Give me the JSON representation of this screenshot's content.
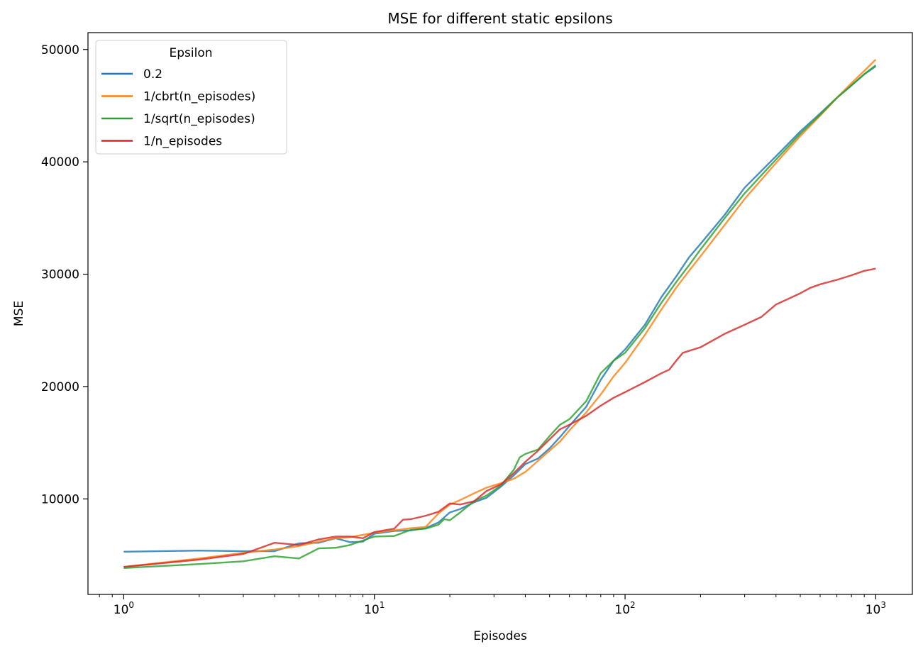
{
  "chart_data": {
    "type": "line",
    "title": "MSE for different static epsilons",
    "xlabel": "Episodes",
    "ylabel": "MSE",
    "xscale": "log",
    "xlim": [
      0.72,
      1400
    ],
    "ylim": [
      1500,
      51500
    ],
    "xticks": [
      {
        "value": 1,
        "base": "10",
        "exp": "0"
      },
      {
        "value": 10,
        "base": "10",
        "exp": "1"
      },
      {
        "value": 100,
        "base": "10",
        "exp": "2"
      },
      {
        "value": 1000,
        "base": "10",
        "exp": "3"
      }
    ],
    "yticks": [
      {
        "value": 10000,
        "label": "10000"
      },
      {
        "value": 20000,
        "label": "20000"
      },
      {
        "value": 30000,
        "label": "30000"
      },
      {
        "value": 40000,
        "label": "40000"
      },
      {
        "value": 50000,
        "label": "50000"
      }
    ],
    "grid": false,
    "legend": {
      "title": "Epsilon",
      "placement": "upper left"
    },
    "series": [
      {
        "name": "0.2",
        "color": "#1f77b4",
        "points": [
          [
            1,
            5300
          ],
          [
            2,
            5400
          ],
          [
            3,
            5350
          ],
          [
            4,
            5350
          ],
          [
            5,
            6050
          ],
          [
            6,
            6100
          ],
          [
            7,
            6500
          ],
          [
            8,
            6150
          ],
          [
            9,
            6200
          ],
          [
            10,
            6900
          ],
          [
            12,
            7150
          ],
          [
            14,
            7200
          ],
          [
            16,
            7400
          ],
          [
            18,
            7900
          ],
          [
            20,
            8800
          ],
          [
            22,
            9100
          ],
          [
            25,
            9700
          ],
          [
            28,
            10100
          ],
          [
            32,
            11100
          ],
          [
            36,
            12100
          ],
          [
            40,
            13100
          ],
          [
            45,
            13600
          ],
          [
            50,
            14500
          ],
          [
            55,
            15500
          ],
          [
            60,
            16500
          ],
          [
            70,
            18200
          ],
          [
            80,
            20600
          ],
          [
            90,
            22300
          ],
          [
            100,
            23300
          ],
          [
            120,
            25500
          ],
          [
            140,
            28000
          ],
          [
            160,
            29800
          ],
          [
            180,
            31500
          ],
          [
            200,
            32700
          ],
          [
            250,
            35300
          ],
          [
            300,
            37700
          ],
          [
            400,
            40500
          ],
          [
            500,
            42700
          ],
          [
            600,
            44300
          ],
          [
            700,
            45700
          ],
          [
            800,
            46800
          ],
          [
            900,
            47800
          ],
          [
            1000,
            48500
          ]
        ]
      },
      {
        "name": "1/cbrt(n_episodes)",
        "color": "#ff7f0e",
        "points": [
          [
            1,
            3950
          ],
          [
            2,
            4700
          ],
          [
            3,
            5200
          ],
          [
            4,
            5500
          ],
          [
            5,
            5800
          ],
          [
            6,
            6200
          ],
          [
            7,
            6500
          ],
          [
            8,
            6600
          ],
          [
            9,
            6800
          ],
          [
            10,
            7000
          ],
          [
            12,
            7200
          ],
          [
            14,
            7400
          ],
          [
            16,
            7500
          ],
          [
            18,
            8700
          ],
          [
            20,
            9500
          ],
          [
            22,
            9900
          ],
          [
            25,
            10500
          ],
          [
            28,
            11000
          ],
          [
            32,
            11400
          ],
          [
            36,
            11800
          ],
          [
            40,
            12400
          ],
          [
            45,
            13400
          ],
          [
            50,
            14300
          ],
          [
            55,
            15100
          ],
          [
            60,
            16100
          ],
          [
            70,
            17700
          ],
          [
            80,
            19300
          ],
          [
            90,
            20900
          ],
          [
            100,
            22100
          ],
          [
            120,
            24600
          ],
          [
            140,
            26900
          ],
          [
            160,
            28800
          ],
          [
            180,
            30300
          ],
          [
            200,
            31600
          ],
          [
            250,
            34400
          ],
          [
            300,
            36700
          ],
          [
            400,
            39900
          ],
          [
            500,
            42300
          ],
          [
            600,
            44100
          ],
          [
            700,
            45700
          ],
          [
            800,
            47000
          ],
          [
            900,
            48100
          ],
          [
            1000,
            49100
          ]
        ]
      },
      {
        "name": "1/sqrt(n_episodes)",
        "color": "#2ca02c",
        "points": [
          [
            1,
            3850
          ],
          [
            2,
            4200
          ],
          [
            3,
            4450
          ],
          [
            4,
            4900
          ],
          [
            5,
            4700
          ],
          [
            6,
            5600
          ],
          [
            7,
            5650
          ],
          [
            8,
            5900
          ],
          [
            9,
            6300
          ],
          [
            10,
            6650
          ],
          [
            12,
            6700
          ],
          [
            14,
            7250
          ],
          [
            16,
            7350
          ],
          [
            18,
            7700
          ],
          [
            19,
            8200
          ],
          [
            20,
            8100
          ],
          [
            22,
            8800
          ],
          [
            25,
            9800
          ],
          [
            28,
            10300
          ],
          [
            32,
            11200
          ],
          [
            36,
            12600
          ],
          [
            38,
            13700
          ],
          [
            40,
            14000
          ],
          [
            45,
            14400
          ],
          [
            50,
            15600
          ],
          [
            55,
            16600
          ],
          [
            60,
            17100
          ],
          [
            70,
            18700
          ],
          [
            80,
            21200
          ],
          [
            90,
            22300
          ],
          [
            100,
            23000
          ],
          [
            120,
            25200
          ],
          [
            140,
            27500
          ],
          [
            160,
            29300
          ],
          [
            180,
            30800
          ],
          [
            200,
            32200
          ],
          [
            250,
            35000
          ],
          [
            300,
            37200
          ],
          [
            400,
            40200
          ],
          [
            500,
            42500
          ],
          [
            600,
            44200
          ],
          [
            700,
            45700
          ],
          [
            800,
            46800
          ],
          [
            900,
            47800
          ],
          [
            1000,
            48600
          ]
        ]
      },
      {
        "name": "1/n_episodes",
        "color": "#d62728",
        "points": [
          [
            1,
            3950
          ],
          [
            2,
            4600
          ],
          [
            3,
            5100
          ],
          [
            4,
            6100
          ],
          [
            5,
            5900
          ],
          [
            6,
            6400
          ],
          [
            7,
            6650
          ],
          [
            8,
            6650
          ],
          [
            9,
            6500
          ],
          [
            10,
            7050
          ],
          [
            12,
            7350
          ],
          [
            13,
            8150
          ],
          [
            14,
            8200
          ],
          [
            16,
            8500
          ],
          [
            18,
            8850
          ],
          [
            20,
            9600
          ],
          [
            22,
            9500
          ],
          [
            25,
            9800
          ],
          [
            28,
            10700
          ],
          [
            32,
            11300
          ],
          [
            36,
            12300
          ],
          [
            40,
            13300
          ],
          [
            45,
            14300
          ],
          [
            50,
            15300
          ],
          [
            55,
            16200
          ],
          [
            60,
            16600
          ],
          [
            70,
            17400
          ],
          [
            80,
            18300
          ],
          [
            90,
            19000
          ],
          [
            100,
            19500
          ],
          [
            120,
            20400
          ],
          [
            140,
            21200
          ],
          [
            150,
            21500
          ],
          [
            160,
            22300
          ],
          [
            170,
            23000
          ],
          [
            200,
            23500
          ],
          [
            250,
            24700
          ],
          [
            300,
            25500
          ],
          [
            350,
            26200
          ],
          [
            400,
            27300
          ],
          [
            500,
            28300
          ],
          [
            550,
            28800
          ],
          [
            600,
            29100
          ],
          [
            700,
            29500
          ],
          [
            800,
            29900
          ],
          [
            900,
            30300
          ],
          [
            1000,
            30500
          ]
        ]
      }
    ]
  }
}
